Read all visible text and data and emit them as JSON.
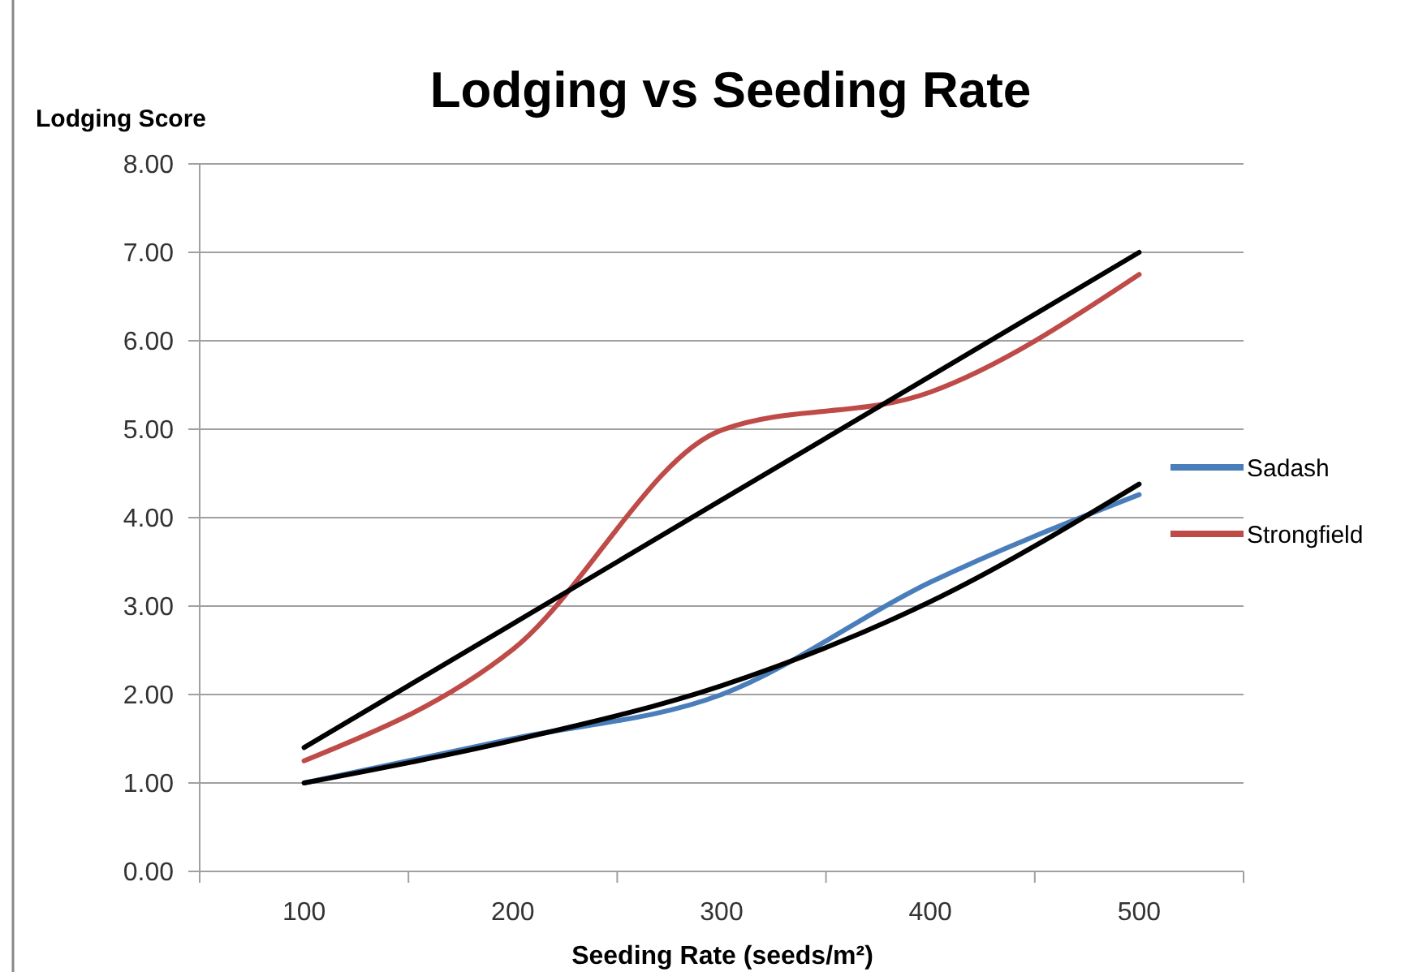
{
  "chart_data": {
    "type": "line",
    "title": "Lodging vs Seeding Rate",
    "xlabel": "Seeding Rate (seeds/m²)",
    "ylabel": "Lodging Score",
    "categories": [
      "100",
      "200",
      "300",
      "400",
      "500"
    ],
    "series": [
      {
        "name": "Sadash",
        "color": "#4a7ebb",
        "values": [
          1.0,
          1.5,
          2.0,
          3.27,
          4.26
        ]
      },
      {
        "name": "Strongfield",
        "color": "#be4b48",
        "values": [
          1.25,
          2.51,
          4.99,
          5.42,
          6.75
        ]
      },
      {
        "color": "#000000",
        "x": [
          "100",
          "200",
          "300",
          "400",
          "500"
        ],
        "values": [
          1.0,
          1.48,
          2.1,
          3.05,
          4.38
        ]
      },
      {
        "color": "#000000",
        "x": [
          "100",
          "200",
          "300",
          "400",
          "500"
        ],
        "values": [
          1.4,
          2.8,
          4.2,
          5.6,
          7.0
        ]
      }
    ],
    "ylim": [
      0,
      8
    ],
    "yticks": [
      {
        "value": 0,
        "label": "0.00"
      },
      {
        "value": 1,
        "label": "1.00"
      },
      {
        "value": 2,
        "label": "2.00"
      },
      {
        "value": 3,
        "label": "3.00"
      },
      {
        "value": 4,
        "label": "4.00"
      },
      {
        "value": 5,
        "label": "5.00"
      },
      {
        "value": 6,
        "label": "6.00"
      },
      {
        "value": 7,
        "label": "7.00"
      },
      {
        "value": 8,
        "label": "8.00"
      }
    ],
    "grid": "y",
    "legend": "right",
    "marker": "none",
    "line_style": "solid"
  }
}
